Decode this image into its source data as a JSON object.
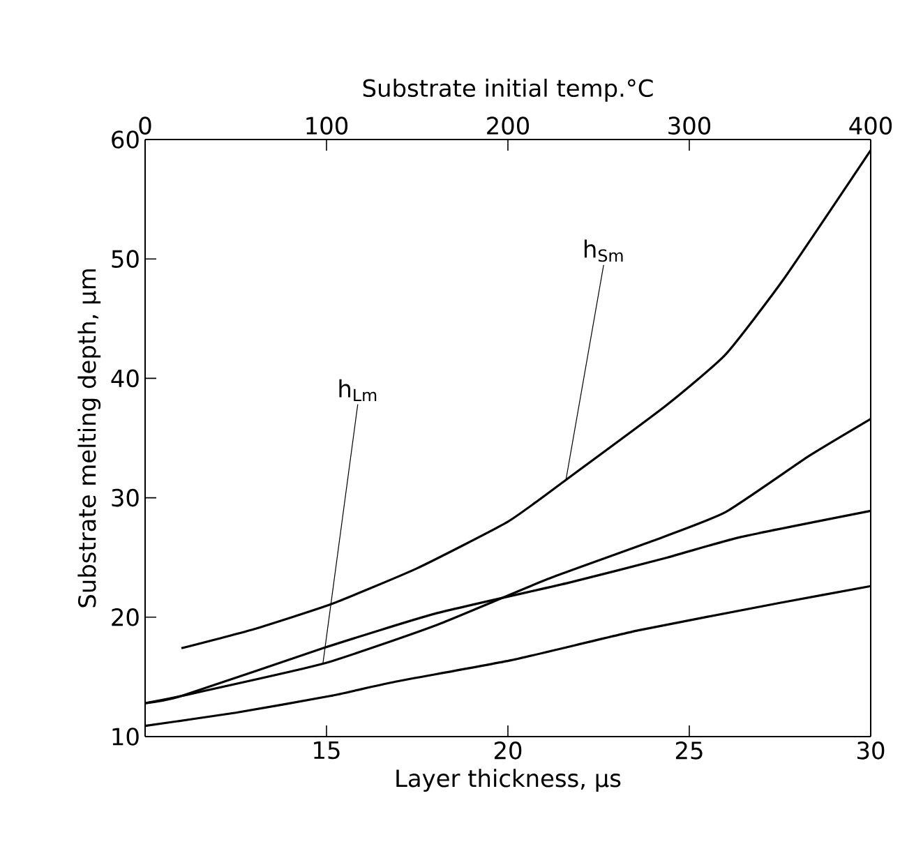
{
  "chart_data": {
    "type": "line",
    "xlabel": "Layer thickness, μs",
    "ylabel": "Substrate melting depth, μm",
    "x2label": "Substrate initial temp.°C",
    "xlim": [
      10,
      30
    ],
    "xticks": [
      {
        "value": 10,
        "label": null
      },
      15,
      20,
      25,
      30
    ],
    "ylim": [
      10,
      60
    ],
    "yticks": [
      10,
      20,
      30,
      40,
      50,
      60
    ],
    "x2lim": [
      0,
      400
    ],
    "x2ticks": [
      0,
      100,
      200,
      300,
      400
    ],
    "grid": false,
    "legend": false,
    "series": [
      {
        "color": "#000000",
        "x": [
          11.0,
          13.0,
          15.13,
          17.5,
          20.0,
          21.6,
          24.35,
          26.0,
          27.6,
          30.0
        ],
        "values": [
          17.4,
          19.0,
          21.1,
          24.1,
          28.0,
          31.5,
          37.7,
          42.0,
          48.3,
          59.1
        ]
      },
      {
        "color": "#000000",
        "x": [
          10.0,
          11.0,
          14.9,
          18.0,
          21.1,
          24.0,
          26.0,
          28.3,
          30.0
        ],
        "values": [
          12.8,
          13.4,
          16.1,
          19.3,
          23.2,
          26.4,
          28.8,
          33.5,
          36.6
        ]
      },
      {
        "color": "#000000",
        "x": [
          10.0,
          11.0,
          14.9,
          18.0,
          21.7,
          24.4,
          26.4,
          30.0
        ],
        "values": [
          12.8,
          13.4,
          17.4,
          20.3,
          22.9,
          25.0,
          26.7,
          28.9
        ]
      },
      {
        "color": "#000000",
        "x": [
          10.0,
          12.5,
          15.1,
          16.9,
          20.1,
          23.6,
          27.5,
          30.0
        ],
        "values": [
          10.9,
          12.0,
          13.4,
          14.6,
          16.4,
          18.9,
          21.2,
          22.6
        ]
      }
    ],
    "annotations": [
      {
        "text": "h$_{Sm}$",
        "x": 21.6,
        "y": 31.5
      },
      {
        "text": "h$_{Lm}$",
        "x": 14.9,
        "y": 16.1
      }
    ]
  }
}
